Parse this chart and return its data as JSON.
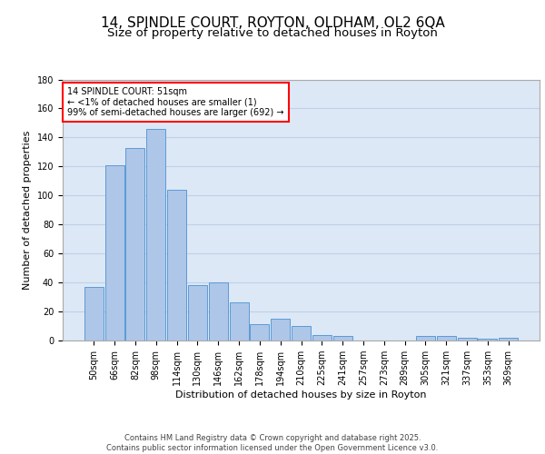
{
  "title_line1": "14, SPINDLE COURT, ROYTON, OLDHAM, OL2 6QA",
  "title_line2": "Size of property relative to detached houses in Royton",
  "xlabel": "Distribution of detached houses by size in Royton",
  "ylabel": "Number of detached properties",
  "bar_labels": [
    "50sqm",
    "66sqm",
    "82sqm",
    "98sqm",
    "114sqm",
    "130sqm",
    "146sqm",
    "162sqm",
    "178sqm",
    "194sqm",
    "210sqm",
    "225sqm",
    "241sqm",
    "257sqm",
    "273sqm",
    "289sqm",
    "305sqm",
    "321sqm",
    "337sqm",
    "353sqm",
    "369sqm"
  ],
  "bar_values": [
    37,
    121,
    133,
    146,
    104,
    38,
    40,
    26,
    11,
    15,
    10,
    4,
    3,
    0,
    0,
    0,
    3,
    3,
    2,
    1,
    2
  ],
  "bar_color": "#aec6e8",
  "bar_edgecolor": "#5b9bd5",
  "bg_color": "#dce8f5",
  "annotation_text": "14 SPINDLE COURT: 51sqm\n← <1% of detached houses are smaller (1)\n99% of semi-detached houses are larger (692) →",
  "annotation_box_color": "#ff0000",
  "ylim": [
    0,
    180
  ],
  "yticks": [
    0,
    20,
    40,
    60,
    80,
    100,
    120,
    140,
    160,
    180
  ],
  "footer_text": "Contains HM Land Registry data © Crown copyright and database right 2025.\nContains public sector information licensed under the Open Government Licence v3.0.",
  "grid_color": "#c0d0e8",
  "title_fontsize": 11,
  "subtitle_fontsize": 9.5,
  "axis_label_fontsize": 8,
  "tick_fontsize": 7,
  "footer_fontsize": 6
}
